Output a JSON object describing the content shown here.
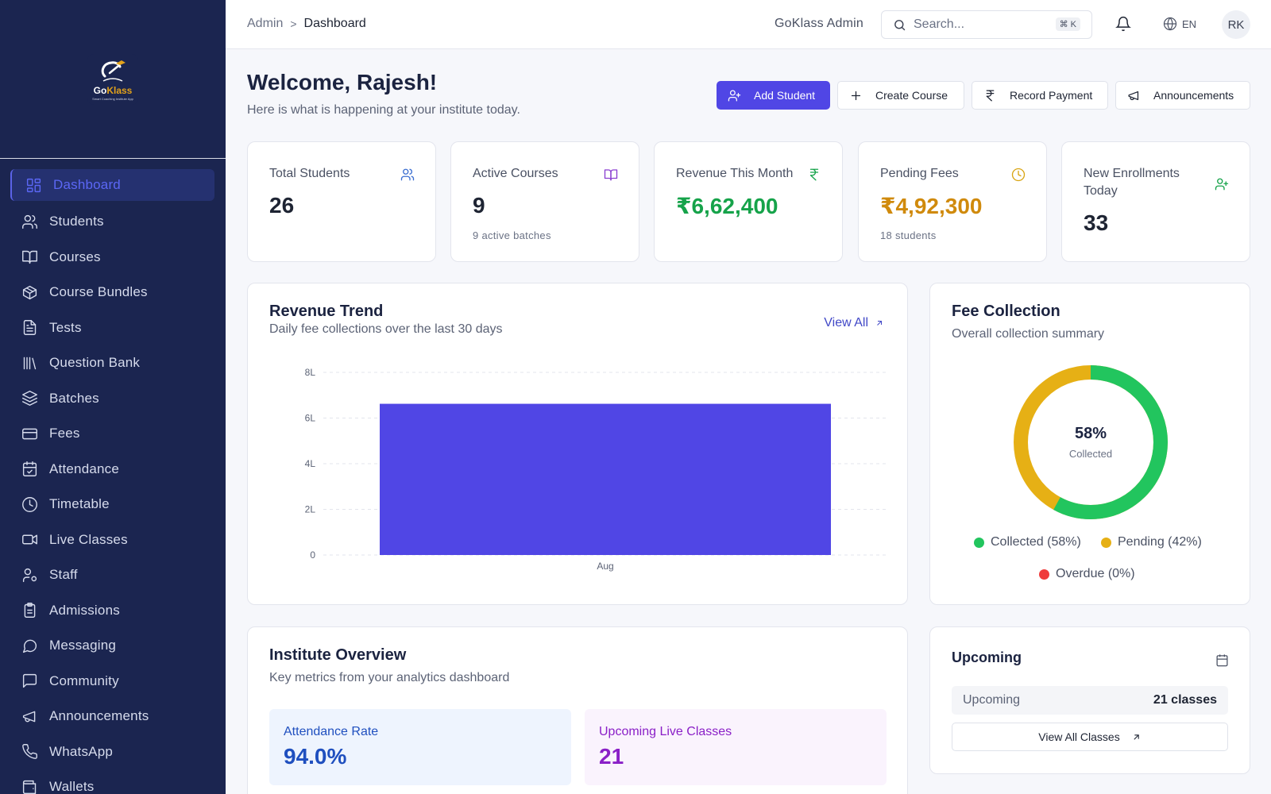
{
  "brand": {
    "name_go": "Go",
    "name_klass": "Klass",
    "tagline": "Smart Coaching Institute App",
    "accent": "#e3a21a"
  },
  "sidebar": {
    "items": [
      {
        "label": "Dashboard",
        "icon": "dashboard-icon",
        "active": true
      },
      {
        "label": "Students",
        "icon": "users-icon"
      },
      {
        "label": "Courses",
        "icon": "book-open-icon"
      },
      {
        "label": "Course Bundles",
        "icon": "package-icon"
      },
      {
        "label": "Tests",
        "icon": "file-text-icon"
      },
      {
        "label": "Question Bank",
        "icon": "library-icon"
      },
      {
        "label": "Batches",
        "icon": "layers-icon"
      },
      {
        "label": "Fees",
        "icon": "credit-card-icon"
      },
      {
        "label": "Attendance",
        "icon": "calendar-check-icon"
      },
      {
        "label": "Timetable",
        "icon": "clock-icon"
      },
      {
        "label": "Live Classes",
        "icon": "video-icon"
      },
      {
        "label": "Staff",
        "icon": "user-cog-icon"
      },
      {
        "label": "Admissions",
        "icon": "clipboard-icon"
      },
      {
        "label": "Messaging",
        "icon": "message-circle-icon"
      },
      {
        "label": "Community",
        "icon": "message-square-icon"
      },
      {
        "label": "Announcements",
        "icon": "megaphone-icon"
      },
      {
        "label": "WhatsApp",
        "icon": "phone-icon"
      },
      {
        "label": "Wallets",
        "icon": "wallet-icon"
      }
    ]
  },
  "topbar": {
    "breadcrumb": {
      "root": "Admin",
      "separator": ">",
      "current": "Dashboard"
    },
    "admin_name": "GoKlass Admin",
    "search": {
      "placeholder": "Search...",
      "shortcut": "⌘ K"
    },
    "language": "EN",
    "avatar_initials": "RK"
  },
  "header": {
    "welcome": "Welcome, Rajesh!",
    "subtitle": "Here is what is happening at your institute today."
  },
  "quick_actions": {
    "add_student": "Add Student",
    "create_course": "Create Course",
    "record_payment": "Record Payment",
    "announcements": "Announcements"
  },
  "stats": [
    {
      "label": "Total Students",
      "value": "26",
      "note": "",
      "icon": "users-icon",
      "color": "#1e2433",
      "icon_color": "#3d6fd1"
    },
    {
      "label": "Active Courses",
      "value": "9",
      "note": "9 active batches",
      "icon": "book-open-icon",
      "color": "#1e2433",
      "icon_color": "#8a3fd1"
    },
    {
      "label": "Revenue This Month",
      "value": "₹6,62,400",
      "note": "",
      "icon": "rupee-icon",
      "color": "#16a34a",
      "icon_color": "#16a34a"
    },
    {
      "label": "Pending Fees",
      "value": "₹4,92,300",
      "note": "18 students",
      "icon": "clock-icon",
      "color": "#d08a0c",
      "icon_color": "#d9a514"
    },
    {
      "label": "New Enrollments Today",
      "value": "33",
      "note": "",
      "icon": "user-plus-icon",
      "color": "#1e2433",
      "icon_color": "#16a34a"
    }
  ],
  "revenue_trend": {
    "title": "Revenue Trend",
    "subtitle": "Daily fee collections over the last 30 days",
    "view_all": "View All"
  },
  "chart_data": {
    "type": "bar",
    "categories": [
      "Aug"
    ],
    "values": [
      6.624
    ],
    "yticks": [
      "0",
      "2L",
      "4L",
      "6L",
      "8L"
    ],
    "ylim": [
      0,
      8
    ],
    "unit": "L",
    "grid": true,
    "bar_color": "#5046e5"
  },
  "fee_collection": {
    "title": "Fee Collection",
    "subtitle": "Overall collection summary",
    "percent": "58%",
    "percent_label": "Collected",
    "collected_fraction": 0.58,
    "legend": [
      {
        "label": "Collected (58%)",
        "color": "#22c55e"
      },
      {
        "label": "Pending (42%)",
        "color": "#e6b015"
      },
      {
        "label": "Overdue (0%)",
        "color": "#ef3b3b"
      }
    ]
  },
  "institute_overview": {
    "title": "Institute Overview",
    "subtitle": "Key metrics from your analytics dashboard",
    "metrics": [
      {
        "label": "Attendance Rate",
        "value": "94.0%",
        "bg": "#eef4fe",
        "color": "#1f4fbf"
      },
      {
        "label": "Upcoming Live Classes",
        "value": "21",
        "bg": "#faf3fd",
        "color": "#8a1fc7"
      }
    ]
  },
  "upcoming": {
    "title": "Upcoming",
    "row_label": "Upcoming",
    "row_value": "21 classes",
    "button": "View All Classes"
  }
}
